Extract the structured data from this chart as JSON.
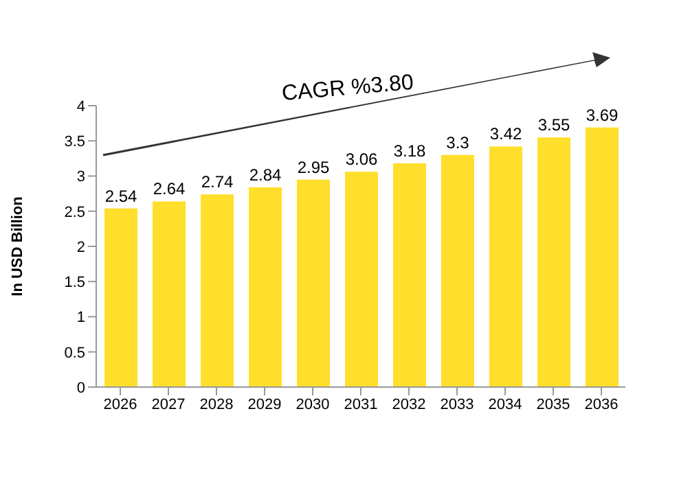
{
  "chart_data": {
    "type": "bar",
    "ylabel": "In USD Billion",
    "categories": [
      "2026",
      "2027",
      "2028",
      "2029",
      "2030",
      "2031",
      "2032",
      "2033",
      "2034",
      "2035",
      "2036"
    ],
    "values": [
      2.54,
      2.64,
      2.74,
      2.84,
      2.95,
      3.06,
      3.18,
      3.3,
      3.42,
      3.55,
      3.69
    ],
    "color": "#ffdf2b",
    "ylim": [
      0,
      4
    ],
    "yticks": [
      0,
      0.5,
      1,
      1.5,
      2,
      2.5,
      3,
      3.5,
      4
    ],
    "grid": false,
    "data_labels": true,
    "annotations": [
      "CAGR %3.80"
    ]
  }
}
